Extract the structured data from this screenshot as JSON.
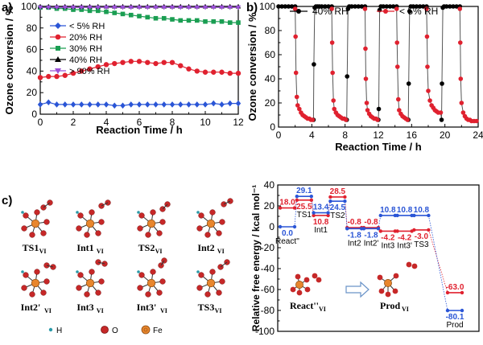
{
  "panel_labels": {
    "a": "a)",
    "b": "b)",
    "c": "c)"
  },
  "colors": {
    "lt5": "#2a55d6",
    "rh20": "#e0212f",
    "rh30": "#1a9e52",
    "rh40": "#000000",
    "gt90": "#9b4fd8",
    "energy_red": "#e0212f",
    "energy_blue": "#2a55d6",
    "atom_o": "#c62828",
    "atom_fe": "#e8862d"
  },
  "chart_data": [
    {
      "panel": "a",
      "type": "line",
      "xlabel": "Reaction Time / h",
      "ylabel": "Ozone conversion / %",
      "xlim": [
        0,
        12
      ],
      "ylim": [
        0,
        100
      ],
      "xticks": [
        0,
        2,
        4,
        6,
        8,
        10,
        12
      ],
      "yticks": [
        0,
        20,
        40,
        60,
        80,
        100
      ],
      "legend_position": "center-right",
      "series": [
        {
          "name": "< 5% RH",
          "color": "#2a55d6",
          "marker": "diamond",
          "x": [
            0,
            0.5,
            1,
            1.5,
            2,
            2.5,
            3,
            3.5,
            4,
            4.5,
            5,
            5.5,
            6,
            6.5,
            7,
            7.5,
            8,
            8.5,
            9,
            9.5,
            10,
            10.5,
            11,
            11.5,
            12
          ],
          "y": [
            9,
            11,
            9,
            9,
            9,
            9,
            9,
            9,
            9,
            8,
            8,
            9,
            9,
            9,
            9,
            9,
            9,
            9,
            9,
            9,
            9,
            10,
            9,
            10,
            10
          ]
        },
        {
          "name": "20% RH",
          "color": "#e0212f",
          "marker": "circle",
          "x": [
            0,
            0.5,
            1,
            1.5,
            2,
            2.5,
            3,
            3.5,
            4,
            4.5,
            5,
            5.5,
            6,
            6.5,
            7,
            7.5,
            8,
            8.5,
            9,
            9.5,
            10,
            10.5,
            11,
            11.5,
            12
          ],
          "y": [
            34,
            35,
            35,
            36,
            38,
            40,
            42,
            44,
            46,
            47,
            48,
            49,
            49,
            48,
            47,
            48,
            48,
            45,
            42,
            40,
            39,
            39,
            39,
            38,
            38
          ]
        },
        {
          "name": "30% RH",
          "color": "#1a9e52",
          "marker": "square",
          "x": [
            0,
            0.5,
            1,
            1.5,
            2,
            2.5,
            3,
            3.5,
            4,
            4.5,
            5,
            5.5,
            6,
            6.5,
            7,
            7.5,
            8,
            8.5,
            9,
            9.5,
            10,
            10.5,
            11,
            11.5,
            12
          ],
          "y": [
            99,
            99,
            98,
            98,
            97,
            97,
            96,
            96,
            95,
            94,
            93,
            92,
            91,
            90,
            89,
            89,
            88,
            87,
            87,
            87,
            86,
            86,
            86,
            85,
            85
          ]
        },
        {
          "name": "40% RH",
          "color": "#000000",
          "marker": "triangle-up",
          "x": [
            0,
            0.5,
            1,
            1.5,
            2,
            2.5,
            3,
            3.5,
            4,
            4.5,
            5,
            5.5,
            6,
            6.5,
            7,
            7.5,
            8,
            8.5,
            9,
            9.5,
            10,
            10.5,
            11,
            11.5,
            12
          ],
          "y": [
            100,
            100,
            100,
            100,
            100,
            100,
            100,
            100,
            100,
            100,
            100,
            100,
            100,
            100,
            100,
            100,
            100,
            100,
            100,
            100,
            100,
            100,
            100,
            100,
            100
          ]
        },
        {
          "name": "> 90% RH",
          "color": "#9b4fd8",
          "marker": "triangle-down",
          "x": [
            0,
            0.5,
            1,
            1.5,
            2,
            2.5,
            3,
            3.5,
            4,
            4.5,
            5,
            5.5,
            6,
            6.5,
            7,
            7.5,
            8,
            8.5,
            9,
            9.5,
            10,
            10.5,
            11,
            11.5,
            12
          ],
          "y": [
            99,
            99,
            99,
            99,
            99,
            99,
            99,
            99,
            99,
            99,
            99,
            99,
            99,
            99,
            99,
            99,
            99,
            99,
            99,
            99,
            99,
            99,
            99,
            99,
            99
          ]
        }
      ]
    },
    {
      "panel": "b",
      "type": "line",
      "xlabel": "Reaction Time / h",
      "ylabel": "Ozone conversion / %",
      "xlim": [
        0,
        24
      ],
      "ylim": [
        0,
        100
      ],
      "xticks": [
        0,
        4,
        8,
        12,
        16,
        20,
        24
      ],
      "yticks": [
        0,
        20,
        40,
        60,
        80,
        100
      ],
      "legend_position": "top",
      "series": [
        {
          "name": "40% RH",
          "color": "#000000",
          "marker": "circle",
          "segments": [
            {
              "x": [
                0,
                0.4,
                0.8,
                1.2,
                1.6,
                2.0
              ],
              "y": [
                100,
                100,
                100,
                100,
                100,
                100
              ]
            },
            {
              "x": [
                4.2,
                4.25,
                4.35,
                4.5,
                4.7,
                4.9,
                5.2,
                5.6,
                6.0,
                6.4
              ],
              "y": [
                6,
                52,
                99,
                100,
                100,
                100,
                100,
                100,
                100,
                100
              ]
            },
            {
              "x": [
                8.2,
                8.25,
                8.35,
                8.5,
                8.8,
                9.2,
                9.6,
                10.0,
                10.4
              ],
              "y": [
                6,
                42,
                98,
                100,
                100,
                100,
                100,
                100,
                100
              ]
            },
            {
              "x": [
                12.0,
                12.05,
                12.15,
                12.3,
                12.6,
                13.0,
                13.4,
                13.8,
                14.2
              ],
              "y": [
                6,
                15,
                97,
                100,
                100,
                100,
                100,
                100,
                100
              ]
            },
            {
              "x": [
                15.6,
                15.65,
                15.75,
                15.9,
                16.2,
                16.6,
                17.0,
                17.4,
                17.8
              ],
              "y": [
                6,
                36,
                96,
                100,
                100,
                100,
                100,
                100,
                100
              ]
            },
            {
              "x": [
                19.6,
                19.65,
                19.75,
                19.9,
                20.2,
                20.6,
                21.0,
                21.4,
                21.8
              ],
              "y": [
                6,
                36,
                99,
                100,
                100,
                100,
                100,
                100,
                100
              ]
            }
          ]
        },
        {
          "name": "< 5% RH",
          "color": "#e0212f",
          "marker": "circle",
          "segments": [
            {
              "x": [
                2.0,
                2.05,
                2.1,
                2.2,
                2.3,
                2.5,
                2.7,
                2.9,
                3.1,
                3.3,
                3.5,
                3.7,
                3.9,
                4.1
              ],
              "y": [
                98,
                75,
                45,
                25,
                18,
                15,
                12,
                10,
                9,
                8,
                7,
                7,
                6,
                6
              ]
            },
            {
              "x": [
                6.4,
                6.45,
                6.5,
                6.6,
                6.7,
                6.9,
                7.1,
                7.3,
                7.5,
                7.7,
                7.9,
                8.1
              ],
              "y": [
                98,
                70,
                45,
                22,
                15,
                12,
                10,
                9,
                8,
                7,
                7,
                6
              ]
            },
            {
              "x": [
                10.4,
                10.45,
                10.5,
                10.6,
                10.7,
                10.9,
                11.1,
                11.3,
                11.5,
                11.7,
                11.9
              ],
              "y": [
                98,
                65,
                40,
                20,
                14,
                11,
                9,
                8,
                7,
                7,
                6
              ]
            },
            {
              "x": [
                14.2,
                14.25,
                14.3,
                14.4,
                14.5,
                14.7,
                14.9,
                15.1,
                15.3,
                15.5
              ],
              "y": [
                98,
                70,
                50,
                23,
                14,
                11,
                9,
                8,
                7,
                6
              ]
            },
            {
              "x": [
                17.8,
                17.85,
                17.9,
                18.0,
                18.2,
                18.4,
                18.6,
                18.8,
                19.0,
                19.2,
                19.5
              ],
              "y": [
                98,
                75,
                50,
                30,
                22,
                18,
                16,
                14,
                13,
                12,
                12
              ]
            },
            {
              "x": [
                21.8,
                21.85,
                21.9,
                22.0,
                22.2,
                22.4,
                22.6,
                22.8,
                23.0,
                23.2,
                23.5,
                23.8
              ],
              "y": [
                98,
                70,
                40,
                20,
                12,
                9,
                7,
                6,
                6,
                5,
                5,
                5
              ]
            }
          ]
        }
      ]
    },
    {
      "panel": "energy",
      "type": "line",
      "ylabel": "Relative free energy / kcal mol⁻¹",
      "ylim": [
        -100,
        40
      ],
      "yticks": [
        -100,
        -80,
        -60,
        -40,
        -20,
        0,
        20,
        40
      ],
      "states": [
        {
          "name": "React''",
          "pos": 0,
          "red": 18.0,
          "blue": 0.0
        },
        {
          "name": "TS1",
          "pos": 1,
          "red": 25.5,
          "blue": 29.1
        },
        {
          "name": "Int1",
          "pos": 2,
          "red": 10.8,
          "blue": 13.4
        },
        {
          "name": "TS2",
          "pos": 3,
          "red": 28.5,
          "blue": 24.5
        },
        {
          "name": "Int2",
          "pos": 4,
          "red": -0.8,
          "blue": -1.8
        },
        {
          "name": "Int2'",
          "pos": 5,
          "red": -0.8,
          "blue": -1.8
        },
        {
          "name": "Int3",
          "pos": 6,
          "red": -4.2,
          "blue": 10.8
        },
        {
          "name": "Int3'",
          "pos": 7,
          "red": -4.2,
          "blue": 10.8
        },
        {
          "name": "TS3",
          "pos": 8,
          "red": -3.0,
          "blue": 10.8
        },
        {
          "name": "Prod",
          "pos": 10,
          "red": -63.0,
          "blue": -80.1
        }
      ],
      "red_labels": [
        "18.0",
        "25.5",
        "10.8",
        "28.5",
        "-0.8",
        "-0.8",
        "-4.2",
        "-4.2",
        "-3.0",
        "-63.0"
      ],
      "blue_labels": [
        "0.0",
        "29.1",
        "13.4",
        "24.5",
        "-1.8",
        "-1.8",
        "10.8",
        "10.8",
        "10.8",
        "-80.1"
      ]
    }
  ],
  "structures": [
    {
      "main": "TS1",
      "sub": "VI"
    },
    {
      "main": "Int1",
      "sub": "VI"
    },
    {
      "main": "TS2",
      "sub": "VI"
    },
    {
      "main": "Int2",
      "sub": "VI"
    },
    {
      "main": "Int2'",
      "sub": "VI"
    },
    {
      "main": "Int3",
      "sub": "VI"
    },
    {
      "main": "Int3'",
      "sub": "VI"
    },
    {
      "main": "TS3",
      "sub": "VI"
    }
  ],
  "atom_legend": {
    "h": "H",
    "o": "O",
    "fe": "Fe"
  },
  "inset": {
    "react": "React''",
    "react_sub": "VI",
    "prod": "Prod",
    "prod_sub": "VI"
  }
}
